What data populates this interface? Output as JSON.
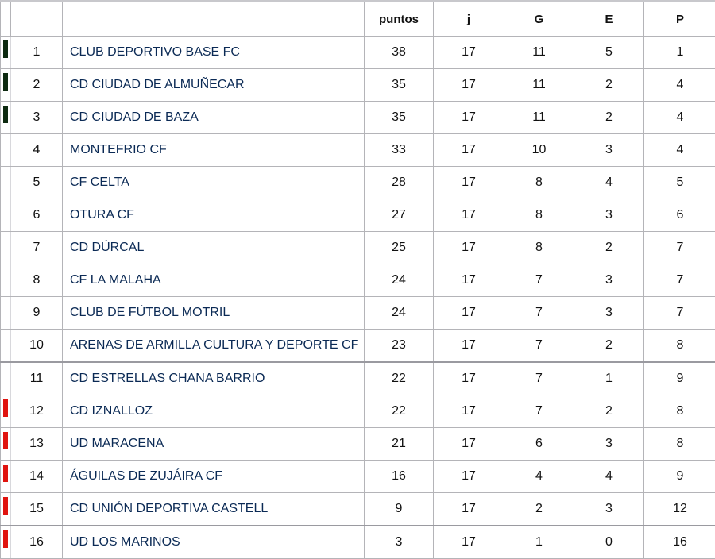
{
  "colors": {
    "promotion": "#0d2a10",
    "relegation": "#e0140f"
  },
  "headers": {
    "puntos": "puntos",
    "j": "j",
    "g": "G",
    "e": "E",
    "p": "P"
  },
  "rows": [
    {
      "pos": "1",
      "team": "CLUB DEPORTIVO BASE FC",
      "puntos": "38",
      "j": "17",
      "g": "11",
      "e": "5",
      "p": "1",
      "marker": "promotion"
    },
    {
      "pos": "2",
      "team": "CD CIUDAD DE ALMUÑECAR",
      "puntos": "35",
      "j": "17",
      "g": "11",
      "e": "2",
      "p": "4",
      "marker": "promotion"
    },
    {
      "pos": "3",
      "team": "CD CIUDAD DE BAZA",
      "puntos": "35",
      "j": "17",
      "g": "11",
      "e": "2",
      "p": "4",
      "marker": "promotion"
    },
    {
      "pos": "4",
      "team": "MONTEFRIO CF",
      "puntos": "33",
      "j": "17",
      "g": "10",
      "e": "3",
      "p": "4",
      "marker": ""
    },
    {
      "pos": "5",
      "team": "CF CELTA",
      "puntos": "28",
      "j": "17",
      "g": "8",
      "e": "4",
      "p": "5",
      "marker": ""
    },
    {
      "pos": "6",
      "team": "OTURA CF",
      "puntos": "27",
      "j": "17",
      "g": "8",
      "e": "3",
      "p": "6",
      "marker": ""
    },
    {
      "pos": "7",
      "team": "CD DÚRCAL",
      "puntos": "25",
      "j": "17",
      "g": "8",
      "e": "2",
      "p": "7",
      "marker": ""
    },
    {
      "pos": "8",
      "team": "CF LA MALAHA",
      "puntos": "24",
      "j": "17",
      "g": "7",
      "e": "3",
      "p": "7",
      "marker": ""
    },
    {
      "pos": "9",
      "team": "CLUB DE FÚTBOL MOTRIL",
      "puntos": "24",
      "j": "17",
      "g": "7",
      "e": "3",
      "p": "7",
      "marker": ""
    },
    {
      "pos": "10",
      "team": "ARENAS DE ARMILLA CULTURA Y DEPORTE CF",
      "puntos": "23",
      "j": "17",
      "g": "7",
      "e": "2",
      "p": "8",
      "marker": ""
    },
    {
      "pos": "11",
      "team": "CD ESTRELLAS CHANA BARRIO",
      "puntos": "22",
      "j": "17",
      "g": "7",
      "e": "1",
      "p": "9",
      "marker": ""
    },
    {
      "pos": "12",
      "team": "CD IZNALLOZ",
      "puntos": "22",
      "j": "17",
      "g": "7",
      "e": "2",
      "p": "8",
      "marker": "relegation"
    },
    {
      "pos": "13",
      "team": "UD MARACENA",
      "puntos": "21",
      "j": "17",
      "g": "6",
      "e": "3",
      "p": "8",
      "marker": "relegation"
    },
    {
      "pos": "14",
      "team": "ÁGUILAS DE ZUJÁIRA CF",
      "puntos": "16",
      "j": "17",
      "g": "4",
      "e": "4",
      "p": "9",
      "marker": "relegation"
    },
    {
      "pos": "15",
      "team": "CD UNIÓN DEPORTIVA CASTELL",
      "puntos": "9",
      "j": "17",
      "g": "2",
      "e": "3",
      "p": "12",
      "marker": "relegation"
    },
    {
      "pos": "16",
      "team": "UD LOS MARINOS",
      "puntos": "3",
      "j": "17",
      "g": "1",
      "e": "0",
      "p": "16",
      "marker": "relegation"
    }
  ]
}
